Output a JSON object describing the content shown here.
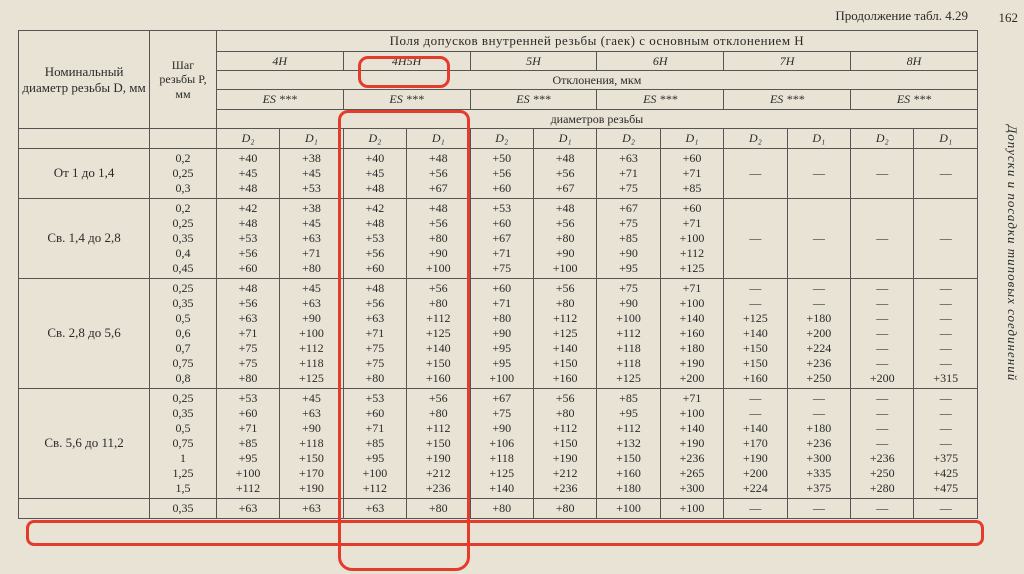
{
  "page_number": "162",
  "continuation": "Продолжение табл. 4.29",
  "side_caption": "Допуски и посадки типовых соединений",
  "hdr": {
    "main": "Поля допусков внутренней резьбы (гаек) с основным отклонением H",
    "nominal": "Номинальный диаметр резьбы D, мм",
    "pitch": "Шаг резьбы P, мм",
    "deviations": "Отклонения, мкм",
    "diams": "диаметров резьбы",
    "classes": [
      "4H",
      "4H5H",
      "5H",
      "6H",
      "7H",
      "8H"
    ],
    "es": "ES ***",
    "d2": "D₂",
    "d1": "D₁",
    "dash": "—"
  },
  "rows": [
    {
      "label": "От 1 до 1,4",
      "pitch": [
        "0,2",
        "0,25",
        "0,3"
      ],
      "c": {
        "4H": {
          "d2": [
            "+40",
            "+45",
            "+48"
          ],
          "d1": [
            "+38",
            "+45",
            "+53"
          ]
        },
        "4H5H": {
          "d2": [
            "+40",
            "+45",
            "+48"
          ],
          "d1": [
            "+48",
            "+56",
            "+67"
          ]
        },
        "5H": {
          "d2": [
            "+50",
            "+56",
            "+60"
          ],
          "d1": [
            "+48",
            "+56",
            "+67"
          ]
        },
        "6H": {
          "d2": [
            "+63",
            "+71",
            "+75"
          ],
          "d1": [
            "+60",
            "+71",
            "+85"
          ]
        },
        "7H": {
          "d2": [
            "—"
          ],
          "d1": [
            "—"
          ]
        },
        "8H": {
          "d2": [
            "—"
          ],
          "d1": [
            "—"
          ]
        }
      }
    },
    {
      "label": "Св. 1,4 до 2,8",
      "pitch": [
        "0,2",
        "0,25",
        "0,35",
        "0,4",
        "0,45"
      ],
      "c": {
        "4H": {
          "d2": [
            "+42",
            "+48",
            "+53",
            "+56",
            "+60"
          ],
          "d1": [
            "+38",
            "+45",
            "+63",
            "+71",
            "+80"
          ]
        },
        "4H5H": {
          "d2": [
            "+42",
            "+48",
            "+53",
            "+56",
            "+60"
          ],
          "d1": [
            "+48",
            "+56",
            "+80",
            "+90",
            "+100"
          ]
        },
        "5H": {
          "d2": [
            "+53",
            "+60",
            "+67",
            "+71",
            "+75"
          ],
          "d1": [
            "+48",
            "+56",
            "+80",
            "+90",
            "+100"
          ]
        },
        "6H": {
          "d2": [
            "+67",
            "+75",
            "+85",
            "+90",
            "+95"
          ],
          "d1": [
            "+60",
            "+71",
            "+100",
            "+112",
            "+125"
          ]
        },
        "7H": {
          "d2": [
            "—"
          ],
          "d1": [
            "—"
          ]
        },
        "8H": {
          "d2": [
            "—"
          ],
          "d1": [
            "—"
          ]
        }
      }
    },
    {
      "label": "Св. 2,8 до 5,6",
      "pitch": [
        "0,25",
        "0,35",
        "0,5",
        "0,6",
        "0,7",
        "0,75",
        "0,8"
      ],
      "c": {
        "4H": {
          "d2": [
            "+48",
            "+56",
            "+63",
            "+71",
            "+75",
            "+75",
            "+80"
          ],
          "d1": [
            "+45",
            "+63",
            "+90",
            "+100",
            "+112",
            "+118",
            "+125"
          ]
        },
        "4H5H": {
          "d2": [
            "+48",
            "+56",
            "+63",
            "+71",
            "+75",
            "+75",
            "+80"
          ],
          "d1": [
            "+56",
            "+80",
            "+112",
            "+125",
            "+140",
            "+150",
            "+160"
          ]
        },
        "5H": {
          "d2": [
            "+60",
            "+71",
            "+80",
            "+90",
            "+95",
            "+95",
            "+100"
          ],
          "d1": [
            "+56",
            "+80",
            "+112",
            "+125",
            "+140",
            "+150",
            "+160"
          ]
        },
        "6H": {
          "d2": [
            "+75",
            "+90",
            "+100",
            "+112",
            "+118",
            "+118",
            "+125"
          ],
          "d1": [
            "+71",
            "+100",
            "+140",
            "+160",
            "+180",
            "+190",
            "+200"
          ]
        },
        "7H": {
          "d2": [
            "—",
            "—",
            "+125",
            "+140",
            "+150",
            "+150",
            "+160"
          ],
          "d1": [
            "—",
            "—",
            "+180",
            "+200",
            "+224",
            "+236",
            "+250"
          ]
        },
        "8H": {
          "d2": [
            "—",
            "—",
            "—",
            "—",
            "—",
            "—",
            "+200"
          ],
          "d1": [
            "—",
            "—",
            "—",
            "—",
            "—",
            "—",
            "+315"
          ]
        }
      }
    },
    {
      "label": "Св. 5,6 до 11,2",
      "pitch": [
        "0,25",
        "0,35",
        "0,5",
        "0,75",
        "1",
        "1,25",
        "1,5"
      ],
      "c": {
        "4H": {
          "d2": [
            "+53",
            "+60",
            "+71",
            "+85",
            "+95",
            "+100",
            "+112"
          ],
          "d1": [
            "+45",
            "+63",
            "+90",
            "+118",
            "+150",
            "+170",
            "+190"
          ]
        },
        "4H5H": {
          "d2": [
            "+53",
            "+60",
            "+71",
            "+85",
            "+95",
            "+100",
            "+112"
          ],
          "d1": [
            "+56",
            "+80",
            "+112",
            "+150",
            "+190",
            "+212",
            "+236"
          ]
        },
        "5H": {
          "d2": [
            "+67",
            "+75",
            "+90",
            "+106",
            "+118",
            "+125",
            "+140"
          ],
          "d1": [
            "+56",
            "+80",
            "+112",
            "+150",
            "+190",
            "+212",
            "+236"
          ]
        },
        "6H": {
          "d2": [
            "+85",
            "+95",
            "+112",
            "+132",
            "+150",
            "+160",
            "+180"
          ],
          "d1": [
            "+71",
            "+100",
            "+140",
            "+190",
            "+236",
            "+265",
            "+300"
          ]
        },
        "7H": {
          "d2": [
            "—",
            "—",
            "+140",
            "+170",
            "+190",
            "+200",
            "+224"
          ],
          "d1": [
            "—",
            "—",
            "+180",
            "+236",
            "+300",
            "+335",
            "+375"
          ]
        },
        "8H": {
          "d2": [
            "—",
            "—",
            "—",
            "—",
            "+236",
            "+250",
            "+280"
          ],
          "d1": [
            "—",
            "—",
            "—",
            "—",
            "+375",
            "+425",
            "+475"
          ]
        }
      }
    },
    {
      "label": "",
      "pitch": [
        "0,35"
      ],
      "c": {
        "4H": {
          "d2": [
            "+63"
          ],
          "d1": [
            "+63"
          ]
        },
        "4H5H": {
          "d2": [
            "+63"
          ],
          "d1": [
            "+80"
          ]
        },
        "5H": {
          "d2": [
            "+80"
          ],
          "d1": [
            "+80"
          ]
        },
        "6H": {
          "d2": [
            "+100"
          ],
          "d1": [
            "+100"
          ]
        },
        "7H": {
          "d2": [
            "—"
          ],
          "d1": [
            "—"
          ]
        },
        "8H": {
          "d2": [
            "—"
          ],
          "d1": [
            "—"
          ]
        }
      }
    }
  ]
}
